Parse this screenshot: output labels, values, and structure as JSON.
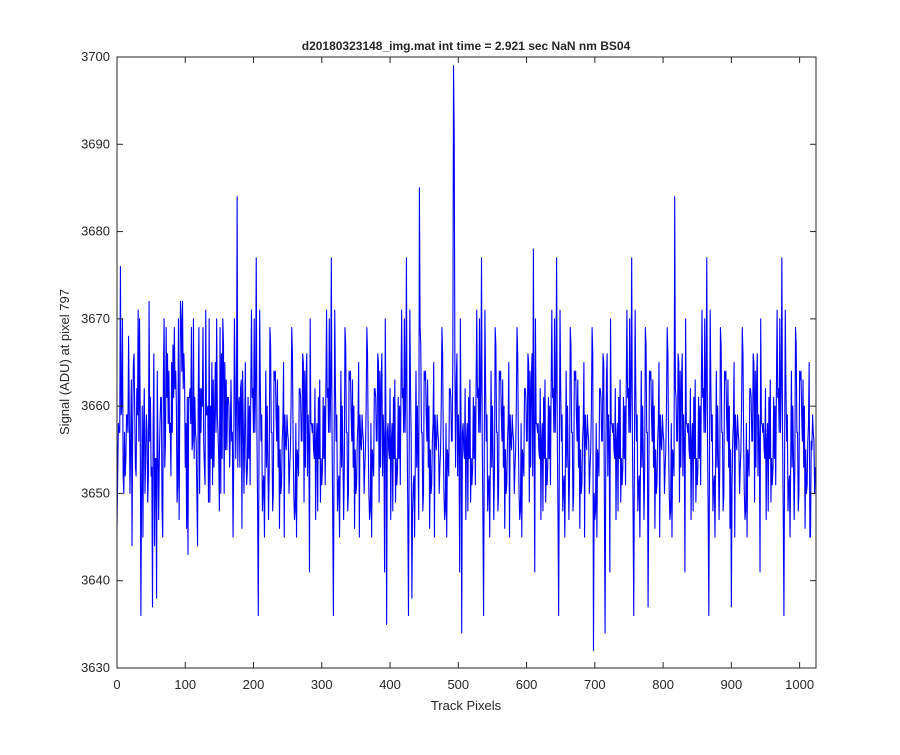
{
  "chart_data": {
    "type": "line",
    "title": "d20180323148_img.mat int time = 2.921 sec  NaN nm BS04",
    "xlabel": "Track Pixels",
    "ylabel": "Signal (ADU) at pixel 797",
    "xlim": [
      0,
      1024
    ],
    "ylim": [
      3630,
      3700
    ],
    "xticks": [
      0,
      100,
      200,
      300,
      400,
      500,
      600,
      700,
      800,
      900,
      1000
    ],
    "yticks": [
      3630,
      3640,
      3650,
      3660,
      3670,
      3680,
      3690,
      3700
    ],
    "grid": false,
    "series": [
      {
        "color": "#0000ff",
        "generated": {
          "n": 1024,
          "mean": 3657.5,
          "sd": 7.2,
          "min": 3632,
          "max": 3699
        },
        "spikes": [
          {
            "x": 176,
            "y": 3684
          },
          {
            "x": 443,
            "y": 3685
          },
          {
            "x": 493,
            "y": 3699
          },
          {
            "x": 494,
            "y": 3691
          },
          {
            "x": 505,
            "y": 3634
          },
          {
            "x": 610,
            "y": 3678
          },
          {
            "x": 698,
            "y": 3632
          },
          {
            "x": 715,
            "y": 3634
          },
          {
            "x": 817,
            "y": 3684
          },
          {
            "x": 395,
            "y": 3635
          },
          {
            "x": 52,
            "y": 3637
          },
          {
            "x": 432,
            "y": 3638
          },
          {
            "x": 58,
            "y": 3638
          },
          {
            "x": 778,
            "y": 3637
          },
          {
            "x": 900,
            "y": 3637
          },
          {
            "x": 1016,
            "y": 3645
          }
        ]
      }
    ]
  }
}
